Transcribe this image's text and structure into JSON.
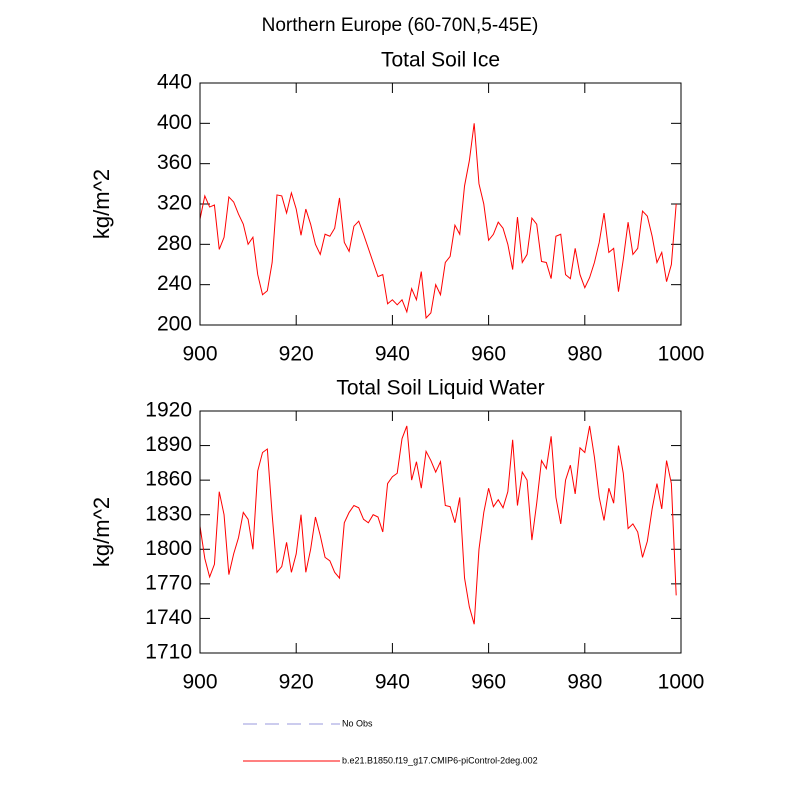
{
  "title": "Northern Europe (60-70N,5-45E)",
  "legend": [
    {
      "name": "No Obs",
      "color": "#9999dd",
      "dash": true
    },
    {
      "name": "b.e21.B1850.f19_g17.CMIP6-piControl-2deg.002",
      "color": "#ff0000",
      "dash": false
    }
  ],
  "chart_data": [
    {
      "type": "line",
      "title": "Total Soil Ice",
      "y_label": "kg/m^2",
      "x": [
        900,
        901,
        902,
        903,
        904,
        905,
        906,
        907,
        908,
        909,
        910,
        911,
        912,
        913,
        914,
        915,
        916,
        917,
        918,
        919,
        920,
        921,
        922,
        923,
        924,
        925,
        926,
        927,
        928,
        929,
        930,
        931,
        932,
        933,
        934,
        935,
        936,
        937,
        938,
        939,
        940,
        941,
        942,
        943,
        944,
        945,
        946,
        947,
        948,
        949,
        950,
        951,
        952,
        953,
        954,
        955,
        956,
        957,
        958,
        959,
        960,
        961,
        962,
        963,
        964,
        965,
        966,
        967,
        968,
        969,
        970,
        971,
        972,
        973,
        974,
        975,
        976,
        977,
        978,
        979,
        980,
        981,
        982,
        983,
        984,
        985,
        986,
        987,
        988,
        989,
        990,
        991,
        992,
        993,
        994,
        995,
        996,
        997,
        998,
        999
      ],
      "values": [
        305,
        328,
        317,
        319,
        275,
        287,
        327,
        322,
        310,
        300,
        280,
        287,
        250,
        230,
        234,
        262,
        329,
        328,
        311,
        331,
        315,
        289,
        315,
        300,
        280,
        270,
        290,
        288,
        296,
        326,
        282,
        273,
        298,
        303,
        290,
        276,
        262,
        248,
        250,
        221,
        225,
        220,
        225,
        213,
        236,
        225,
        253,
        207,
        212,
        240,
        230,
        262,
        268,
        299,
        290,
        338,
        363,
        400,
        340,
        320,
        284,
        290,
        302,
        296,
        280,
        255,
        307,
        262,
        270,
        306,
        300,
        263,
        262,
        246,
        288,
        290,
        250,
        246,
        276,
        250,
        237,
        247,
        262,
        282,
        311,
        272,
        276,
        233,
        265,
        302,
        270,
        276,
        313,
        308,
        288,
        262,
        272,
        243,
        260,
        320
      ],
      "color": "#ff0000",
      "xlim": [
        900,
        1000
      ],
      "xticks": [
        900,
        920,
        940,
        960,
        980,
        1000
      ],
      "ylim": [
        200,
        440
      ],
      "yticks": [
        200,
        240,
        280,
        320,
        360,
        400,
        440
      ]
    },
    {
      "type": "line",
      "title": "Total Soil Liquid Water",
      "y_label": "kg/m^2",
      "x": [
        900,
        901,
        902,
        903,
        904,
        905,
        906,
        907,
        908,
        909,
        910,
        911,
        912,
        913,
        914,
        915,
        916,
        917,
        918,
        919,
        920,
        921,
        922,
        923,
        924,
        925,
        926,
        927,
        928,
        929,
        930,
        931,
        932,
        933,
        934,
        935,
        936,
        937,
        938,
        939,
        940,
        941,
        942,
        943,
        944,
        945,
        946,
        947,
        948,
        949,
        950,
        951,
        952,
        953,
        954,
        955,
        956,
        957,
        958,
        959,
        960,
        961,
        962,
        963,
        964,
        965,
        966,
        967,
        968,
        969,
        970,
        971,
        972,
        973,
        974,
        975,
        976,
        977,
        978,
        979,
        980,
        981,
        982,
        983,
        984,
        985,
        986,
        987,
        988,
        989,
        990,
        991,
        992,
        993,
        994,
        995,
        996,
        997,
        998,
        999
      ],
      "values": [
        1820,
        1792,
        1776,
        1787,
        1850,
        1830,
        1778,
        1796,
        1810,
        1832,
        1826,
        1800,
        1868,
        1884,
        1887,
        1830,
        1780,
        1785,
        1806,
        1780,
        1796,
        1830,
        1780,
        1800,
        1828,
        1812,
        1793,
        1790,
        1780,
        1775,
        1823,
        1832,
        1838,
        1836,
        1826,
        1823,
        1830,
        1828,
        1815,
        1857,
        1863,
        1866,
        1896,
        1907,
        1860,
        1876,
        1853,
        1885,
        1877,
        1867,
        1876,
        1838,
        1837,
        1823,
        1845,
        1775,
        1750,
        1735,
        1800,
        1832,
        1853,
        1837,
        1843,
        1836,
        1850,
        1895,
        1838,
        1867,
        1860,
        1808,
        1840,
        1877,
        1870,
        1898,
        1845,
        1822,
        1860,
        1873,
        1848,
        1888,
        1884,
        1907,
        1880,
        1845,
        1825,
        1853,
        1840,
        1890,
        1866,
        1818,
        1822,
        1815,
        1793,
        1807,
        1835,
        1857,
        1835,
        1877,
        1857,
        1760
      ],
      "color": "#ff0000",
      "xlim": [
        900,
        1000
      ],
      "xticks": [
        900,
        920,
        940,
        960,
        980,
        1000
      ],
      "ylim": [
        1710,
        1920
      ],
      "yticks": [
        1710,
        1740,
        1770,
        1800,
        1830,
        1860,
        1890,
        1920
      ]
    }
  ]
}
